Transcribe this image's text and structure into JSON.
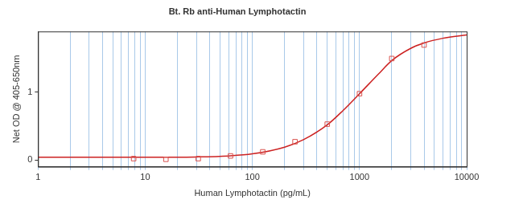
{
  "chart_data": {
    "type": "scatter",
    "title": "Bt. Rb anti-Human Lymphotactin",
    "x_label": "Human Lymphotactin (pg/mL)",
    "y_label": "Net OD @ 405-650nm",
    "log": "x",
    "grid": true,
    "xlim": [
      1,
      10000
    ],
    "xticks": [
      1,
      10,
      100,
      1000,
      10000
    ],
    "ylim": [
      -0.1,
      1.9
    ],
    "yticks": [
      0,
      1
    ],
    "series": [
      {
        "type": "scatter",
        "marker": "square",
        "color": "#d9534f",
        "x": [
          7.8,
          15.6,
          31.25,
          62.5,
          125,
          250,
          500,
          1000,
          2000,
          4000
        ],
        "values": [
          0.02,
          0.01,
          0.02,
          0.06,
          0.12,
          0.27,
          0.53,
          0.98,
          1.5,
          1.7
        ]
      },
      {
        "type": "line",
        "line_style": "solid",
        "color": "#cc2222",
        "x": [
          1,
          10,
          30,
          60,
          100,
          200,
          300,
          500,
          700,
          1000,
          1500,
          2000,
          3000,
          4000,
          6000,
          10000
        ],
        "values": [
          0.04,
          0.04,
          0.045,
          0.06,
          0.09,
          0.19,
          0.3,
          0.52,
          0.73,
          0.98,
          1.27,
          1.47,
          1.65,
          1.73,
          1.8,
          1.85
        ]
      }
    ]
  }
}
